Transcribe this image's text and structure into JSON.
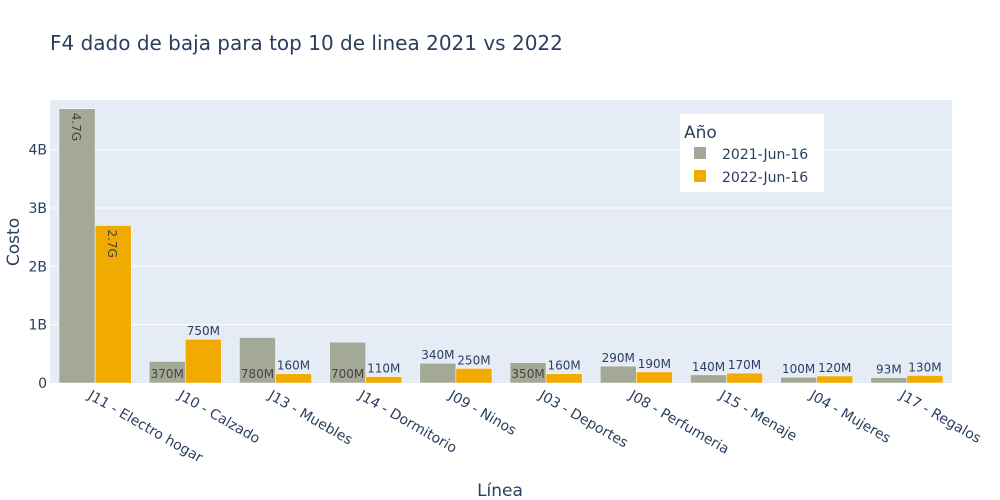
{
  "chart_data": {
    "type": "bar",
    "title": "F4 dado de baja para top 10 de linea 2021 vs 2022",
    "xlabel": "Línea",
    "ylabel": "Costo",
    "ylim": [
      0,
      4850000000
    ],
    "yticks": [
      0,
      1000000000,
      2000000000,
      3000000000,
      4000000000
    ],
    "ytick_labels": [
      "0",
      "1B",
      "2B",
      "3B",
      "4B"
    ],
    "grid": true,
    "legend_title": "Año",
    "legend_position": "top-right",
    "categories": [
      "J11 - Electro hogar",
      "J10 - Calzado",
      "J13 - Muebles",
      "J14 - Dormitorio",
      "J09 - Ninos",
      "J03 - Deportes",
      "J08 - Perfumeria",
      "J15 - Menaje",
      "J04 - Mujeres",
      "J17 - Regalos"
    ],
    "series": [
      {
        "name": "2021-Jun-16",
        "color": "#a4a897",
        "values": [
          4700000000,
          370000000,
          780000000,
          700000000,
          340000000,
          350000000,
          290000000,
          140000000,
          100000000,
          93000000
        ],
        "labels": [
          "4.7G",
          "370M",
          "780M",
          "700M",
          "340M",
          "350M",
          "290M",
          "140M",
          "100M",
          "93M"
        ]
      },
      {
        "name": "2022-Jun-16",
        "color": "#f0aa00",
        "values": [
          2700000000,
          750000000,
          160000000,
          110000000,
          250000000,
          160000000,
          190000000,
          170000000,
          120000000,
          130000000
        ],
        "labels": [
          "2.7G",
          "750M",
          "160M",
          "110M",
          "250M",
          "160M",
          "190M",
          "170M",
          "120M",
          "130M"
        ]
      }
    ]
  }
}
